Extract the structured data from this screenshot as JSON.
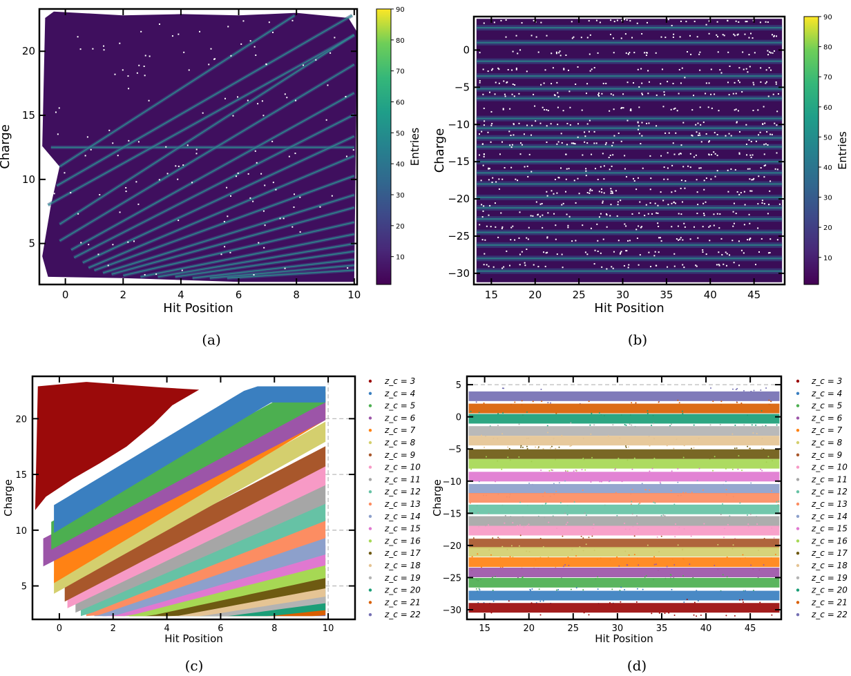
{
  "chart_data": [
    {
      "type": "heatmap",
      "caption": "(a)",
      "xlabel": "Hit Position",
      "ylabel": "Charge",
      "xlim": [
        -0.9,
        10.1
      ],
      "ylim": [
        1.8,
        23.3
      ],
      "xticks": [
        0,
        2,
        4,
        6,
        8,
        10
      ],
      "yticks": [
        5,
        10,
        15,
        20
      ],
      "colorbar": {
        "label": "Entries",
        "range": [
          1,
          90
        ],
        "ticks": [
          10,
          20,
          30,
          40,
          50,
          60,
          70,
          80,
          90
        ],
        "colormap": "viridis"
      },
      "bands": [
        {
          "z": 3,
          "x0": -0.5,
          "y0": 12.5,
          "slope": 0.0
        },
        {
          "z": 4,
          "x0": -0.2,
          "y0": 11.0,
          "slope": 1.45
        },
        {
          "z": 5,
          "x0": -0.3,
          "y0": 9.5,
          "slope": 1.3
        },
        {
          "z": 6,
          "x0": -0.6,
          "y0": 8.0,
          "slope": 1.25
        },
        {
          "z": 7,
          "x0": -0.2,
          "y0": 6.5,
          "slope": 1.45
        },
        {
          "z": 8,
          "x0": -0.2,
          "y0": 5.2,
          "slope": 1.35
        },
        {
          "z": 9,
          "x0": 0.2,
          "y0": 4.5,
          "slope": 1.25
        },
        {
          "z": 10,
          "x0": 0.3,
          "y0": 3.9,
          "slope": 1.15
        },
        {
          "z": 11,
          "x0": 0.6,
          "y0": 3.5,
          "slope": 1.05
        },
        {
          "z": 12,
          "x0": 0.8,
          "y0": 3.1,
          "slope": 0.95
        },
        {
          "z": 13,
          "x0": 1.0,
          "y0": 2.9,
          "slope": 0.82
        },
        {
          "z": 14,
          "x0": 1.3,
          "y0": 2.7,
          "slope": 0.7
        },
        {
          "z": 15,
          "x0": 1.6,
          "y0": 2.6,
          "slope": 0.62
        },
        {
          "z": 16,
          "x0": 2.0,
          "y0": 2.5,
          "slope": 0.52
        },
        {
          "z": 17,
          "x0": 2.6,
          "y0": 2.4,
          "slope": 0.45
        },
        {
          "z": 18,
          "x0": 3.2,
          "y0": 2.4,
          "slope": 0.38
        },
        {
          "z": 19,
          "x0": 3.8,
          "y0": 2.4,
          "slope": 0.32
        },
        {
          "z": 20,
          "x0": 4.4,
          "y0": 2.3,
          "slope": 0.26
        },
        {
          "z": 21,
          "x0": 5.0,
          "y0": 2.3,
          "slope": 0.2
        },
        {
          "z": 22,
          "x0": 5.6,
          "y0": 2.3,
          "slope": 0.14
        }
      ]
    },
    {
      "type": "heatmap",
      "caption": "(b)",
      "xlabel": "Hit Position",
      "ylabel": "Charge",
      "xlim": [
        13.0,
        48.5
      ],
      "ylim": [
        -31.5,
        4.5
      ],
      "xticks": [
        15,
        20,
        25,
        30,
        35,
        40,
        45
      ],
      "yticks": [
        0,
        -5,
        -10,
        -15,
        -20,
        -25,
        -30
      ],
      "colorbar": {
        "label": "Entries",
        "range": [
          1,
          90
        ],
        "ticks": [
          10,
          20,
          30,
          40,
          50,
          60,
          70,
          80,
          90
        ],
        "colormap": "viridis"
      },
      "bands": [
        {
          "z": 3,
          "y": -29.7
        },
        {
          "z": 4,
          "y": -28.0
        },
        {
          "z": 5,
          "y": -26.2
        },
        {
          "z": 6,
          "y": -24.5
        },
        {
          "z": 7,
          "y": -22.7
        },
        {
          "z": 8,
          "y": -21.2
        },
        {
          "z": 9,
          "y": -19.8
        },
        {
          "z": 10,
          "y": -18.0
        },
        {
          "z": 11,
          "y": -16.5
        },
        {
          "z": 12,
          "y": -15.0
        },
        {
          "z": 13,
          "y": -13.0
        },
        {
          "z": 14,
          "y": -11.8
        },
        {
          "z": 15,
          "y": -10.5
        },
        {
          "z": 16,
          "y": -9.2
        },
        {
          "z": 17,
          "y": -6.5
        },
        {
          "z": 18,
          "y": -5.2
        },
        {
          "z": 19,
          "y": -3.5
        },
        {
          "z": 20,
          "y": -1.5
        },
        {
          "z": 21,
          "y": 1.0
        },
        {
          "z": 22,
          "y": 3.0
        }
      ]
    },
    {
      "type": "scatter",
      "caption": "(c)",
      "xlabel": "Hit Position",
      "ylabel": "Charge",
      "xlim": [
        -1.0,
        11.0
      ],
      "ylim": [
        2.0,
        23.8
      ],
      "xticks": [
        0,
        2,
        4,
        6,
        8,
        10
      ],
      "yticks": [
        5,
        10,
        15,
        20
      ],
      "guides": {
        "vertical": [
          10
        ],
        "horizontal": [
          5,
          10,
          15,
          20
        ]
      },
      "legend": "right",
      "series": [
        {
          "name": "z_c = 3",
          "z": 3,
          "color": "#9b0a0a"
        },
        {
          "name": "z_c = 4",
          "z": 4,
          "color": "#3a7fc0"
        },
        {
          "name": "z_c = 5",
          "z": 5,
          "color": "#4caf50"
        },
        {
          "name": "z_c = 6",
          "z": 6,
          "color": "#9c55a8"
        },
        {
          "name": "z_c = 7",
          "z": 7,
          "color": "#ff8214"
        },
        {
          "name": "z_c = 8",
          "z": 8,
          "color": "#d4cf6e"
        },
        {
          "name": "z_c = 9",
          "z": 9,
          "color": "#a8572b"
        },
        {
          "name": "z_c = 10",
          "z": 10,
          "color": "#f79ac6"
        },
        {
          "name": "z_c = 11",
          "z": 11,
          "color": "#a6a6a6"
        },
        {
          "name": "z_c = 12",
          "z": 12,
          "color": "#66c2a5"
        },
        {
          "name": "z_c = 13",
          "z": 13,
          "color": "#fc8d62"
        },
        {
          "name": "z_c = 14",
          "z": 14,
          "color": "#8da0cb"
        },
        {
          "name": "z_c = 15",
          "z": 15,
          "color": "#e078d0"
        },
        {
          "name": "z_c = 16",
          "z": 16,
          "color": "#a6d854"
        },
        {
          "name": "z_c = 17",
          "z": 17,
          "color": "#6e5a12"
        },
        {
          "name": "z_c = 18",
          "z": 18,
          "color": "#e5c494"
        },
        {
          "name": "z_c = 19",
          "z": 19,
          "color": "#b3b3b3"
        },
        {
          "name": "z_c = 20",
          "z": 20,
          "color": "#1b9e77"
        },
        {
          "name": "z_c = 21",
          "z": 21,
          "color": "#d95f02"
        },
        {
          "name": "z_c = 22",
          "z": 22,
          "color": "#7570b3"
        }
      ]
    },
    {
      "type": "scatter",
      "caption": "(d)",
      "xlabel": "Hit Position",
      "ylabel": "Charge",
      "xlim": [
        13.0,
        48.5
      ],
      "ylim": [
        -31.5,
        6.3
      ],
      "xticks": [
        15,
        20,
        25,
        30,
        35,
        40,
        45
      ],
      "yticks": [
        5,
        0,
        -5,
        -10,
        -15,
        -20,
        -25,
        -30
      ],
      "guides": {
        "horizontal": [
          5
        ]
      },
      "legend": "right",
      "series": [
        {
          "name": "z_c = 3",
          "z": 3,
          "color": "#9b0a0a",
          "y": -29.7
        },
        {
          "name": "z_c = 4",
          "z": 4,
          "color": "#3a7fc0",
          "y": -27.8
        },
        {
          "name": "z_c = 5",
          "z": 5,
          "color": "#4caf50",
          "y": -25.8
        },
        {
          "name": "z_c = 6",
          "z": 6,
          "color": "#9c55a8",
          "y": -24.2
        },
        {
          "name": "z_c = 7",
          "z": 7,
          "color": "#ff8214",
          "y": -22.6
        },
        {
          "name": "z_c = 8",
          "z": 8,
          "color": "#d4cf6e",
          "y": -21.0
        },
        {
          "name": "z_c = 9",
          "z": 9,
          "color": "#a8572b",
          "y": -19.7
        },
        {
          "name": "z_c = 10",
          "z": 10,
          "color": "#f79ac6",
          "y": -17.7
        },
        {
          "name": "z_c = 11",
          "z": 11,
          "color": "#a6a6a6",
          "y": -16.2
        },
        {
          "name": "z_c = 12",
          "z": 12,
          "color": "#66c2a5",
          "y": -14.4
        },
        {
          "name": "z_c = 13",
          "z": 13,
          "color": "#fc8d62",
          "y": -12.6
        },
        {
          "name": "z_c = 14",
          "z": 14,
          "color": "#8da0cb",
          "y": -11.2
        },
        {
          "name": "z_c = 15",
          "z": 15,
          "color": "#e078d0",
          "y": -9.3
        },
        {
          "name": "z_c = 16",
          "z": 16,
          "color": "#a6d854",
          "y": -7.3
        },
        {
          "name": "z_c = 17",
          "z": 17,
          "color": "#6e5a12",
          "y": -5.8
        },
        {
          "name": "z_c = 18",
          "z": 18,
          "color": "#e5c494",
          "y": -3.7
        },
        {
          "name": "z_c = 19",
          "z": 19,
          "color": "#b3b3b3",
          "y": -2.2
        },
        {
          "name": "z_c = 20",
          "z": 20,
          "color": "#1b9e77",
          "y": -0.3
        },
        {
          "name": "z_c = 21",
          "z": 21,
          "color": "#d95f02",
          "y": 1.3
        },
        {
          "name": "z_c = 22",
          "z": 22,
          "color": "#7570b3",
          "y": 3.2
        }
      ]
    }
  ]
}
